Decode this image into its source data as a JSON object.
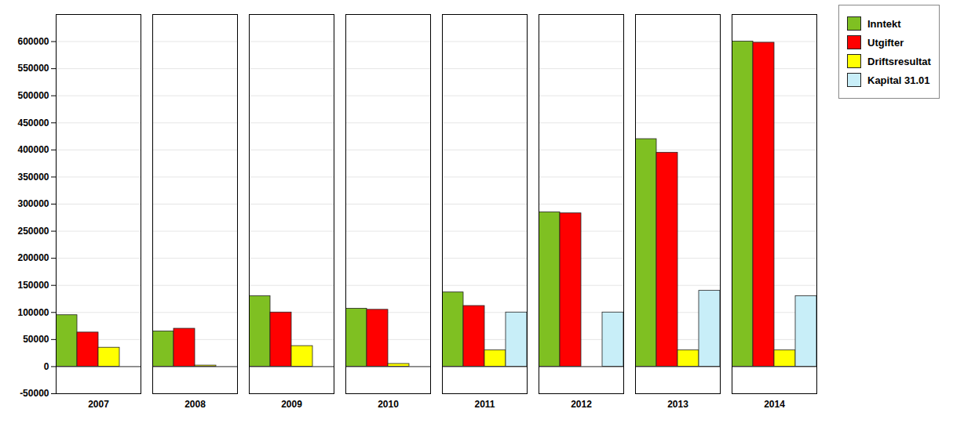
{
  "chart_data": {
    "type": "bar",
    "categories": [
      "2007",
      "2008",
      "2009",
      "2010",
      "2011",
      "2012",
      "2013",
      "2014"
    ],
    "series": [
      {
        "name": "Inntekt",
        "color": "#7fc022",
        "values": [
          95000,
          65000,
          130000,
          107000,
          137000,
          285000,
          420000,
          600000
        ]
      },
      {
        "name": "Utgifter",
        "color": "#ff0000",
        "values": [
          63000,
          70000,
          100000,
          105000,
          112000,
          283000,
          395000,
          598000
        ]
      },
      {
        "name": "Driftsresultat",
        "color": "#ffff00",
        "values": [
          35000,
          2000,
          38000,
          5000,
          30000,
          0,
          30000,
          30000
        ]
      },
      {
        "name": "Kapital 31.01",
        "color": "#c8eef8",
        "values": [
          0,
          0,
          0,
          0,
          100000,
          100000,
          140000,
          130000
        ]
      }
    ],
    "ylim": [
      -50000,
      650000
    ],
    "yticks": [
      -50000,
      0,
      50000,
      100000,
      150000,
      200000,
      250000,
      300000,
      350000,
      400000,
      450000,
      500000,
      550000,
      600000
    ],
    "grid": true,
    "legend": "upper right"
  }
}
